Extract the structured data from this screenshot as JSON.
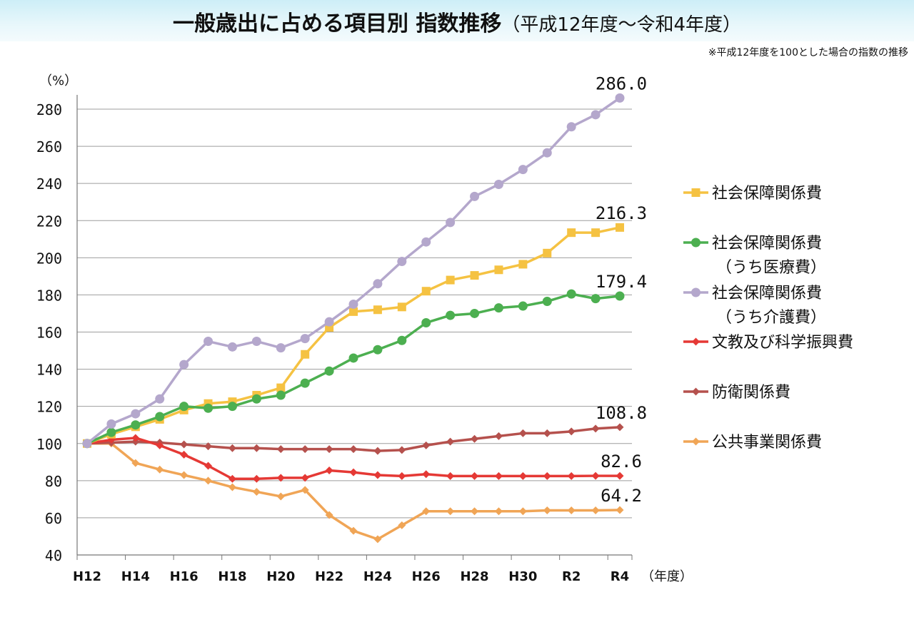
{
  "title": {
    "main": "一般歳出に占める項目別 指数推移",
    "sub": "（平成12年度～令和4年度）"
  },
  "note": "※平成12年度を100とした場合の指数の推移",
  "chart_data": {
    "type": "line",
    "y_unit_label": "（%）",
    "x_unit_label": "（年度）",
    "ylim": [
      40,
      280
    ],
    "y_ticks": [
      40,
      60,
      80,
      100,
      120,
      140,
      160,
      180,
      200,
      220,
      240,
      260,
      280
    ],
    "x": [
      "H12",
      "H13",
      "H14",
      "H15",
      "H16",
      "H17",
      "H18",
      "H19",
      "H20",
      "H21",
      "H22",
      "H23",
      "H24",
      "H25",
      "H26",
      "H27",
      "H28",
      "H29",
      "H30",
      "R1",
      "R2",
      "R3",
      "R4"
    ],
    "x_tick_labels": [
      "H12",
      "",
      "H14",
      "",
      "H16",
      "",
      "H18",
      "",
      "H20",
      "",
      "H22",
      "",
      "H24",
      "",
      "H26",
      "",
      "H28",
      "",
      "H30",
      "",
      "R2",
      "",
      "R4"
    ],
    "grid": "horizontal",
    "legend_position": "right",
    "series": [
      {
        "name": "社会保障関係費",
        "color": "#f5c242",
        "marker": "square",
        "values": [
          100,
          105,
          109,
          113,
          118,
          121.5,
          122.5,
          126,
          130,
          148,
          162.5,
          171,
          172,
          173.5,
          182,
          188,
          190.5,
          193.5,
          196.5,
          202.5,
          213.5,
          213.5,
          216.3
        ],
        "end_label": "216.3"
      },
      {
        "name": "社会保障関係費\n（うち医療費）",
        "color": "#4caf50",
        "marker": "circle",
        "values": [
          100,
          106,
          110,
          114.5,
          120,
          119,
          120,
          124,
          126,
          132.5,
          139,
          146,
          150.5,
          155.5,
          165,
          169,
          170,
          173,
          174,
          176.5,
          180.5,
          178,
          179.4
        ],
        "end_label": "179.4"
      },
      {
        "name": "社会保障関係費\n（うち介護費）",
        "color": "#b4a7cc",
        "marker": "circle",
        "values": [
          100,
          110.5,
          116,
          124,
          142.5,
          155,
          152,
          155,
          151.5,
          156.5,
          165.5,
          175,
          186,
          198,
          208.5,
          219,
          233,
          239.5,
          247.5,
          256.5,
          270.5,
          277,
          286.0
        ],
        "end_label": "286.0"
      },
      {
        "name": "文教及び科学振興費",
        "color": "#e53935",
        "marker": "diamond",
        "values": [
          100,
          102,
          103,
          99,
          94,
          88,
          81,
          81,
          81.5,
          81.5,
          85.5,
          84.5,
          83,
          82.5,
          83.5,
          82.5,
          82.5,
          82.5,
          82.5,
          82.5,
          82.5,
          82.6,
          82.6
        ],
        "end_label": "82.6"
      },
      {
        "name": "防衛関係費",
        "color": "#b5514d",
        "marker": "diamond",
        "values": [
          100,
          100.5,
          101,
          100.5,
          99.5,
          98.5,
          97.5,
          97.5,
          97,
          97,
          97,
          97,
          96,
          96.5,
          99,
          101,
          102.5,
          104,
          105.5,
          105.5,
          106.5,
          108,
          108.8
        ],
        "end_label": "108.8"
      },
      {
        "name": "公共事業関係費",
        "color": "#f0a556",
        "marker": "diamond",
        "values": [
          100,
          100,
          89.5,
          86,
          83,
          80,
          76.5,
          74,
          71.5,
          75,
          61.5,
          53,
          48.5,
          56,
          63.5,
          63.5,
          63.5,
          63.5,
          63.5,
          64,
          64,
          64,
          64.2
        ],
        "end_label": "64.2"
      }
    ]
  }
}
